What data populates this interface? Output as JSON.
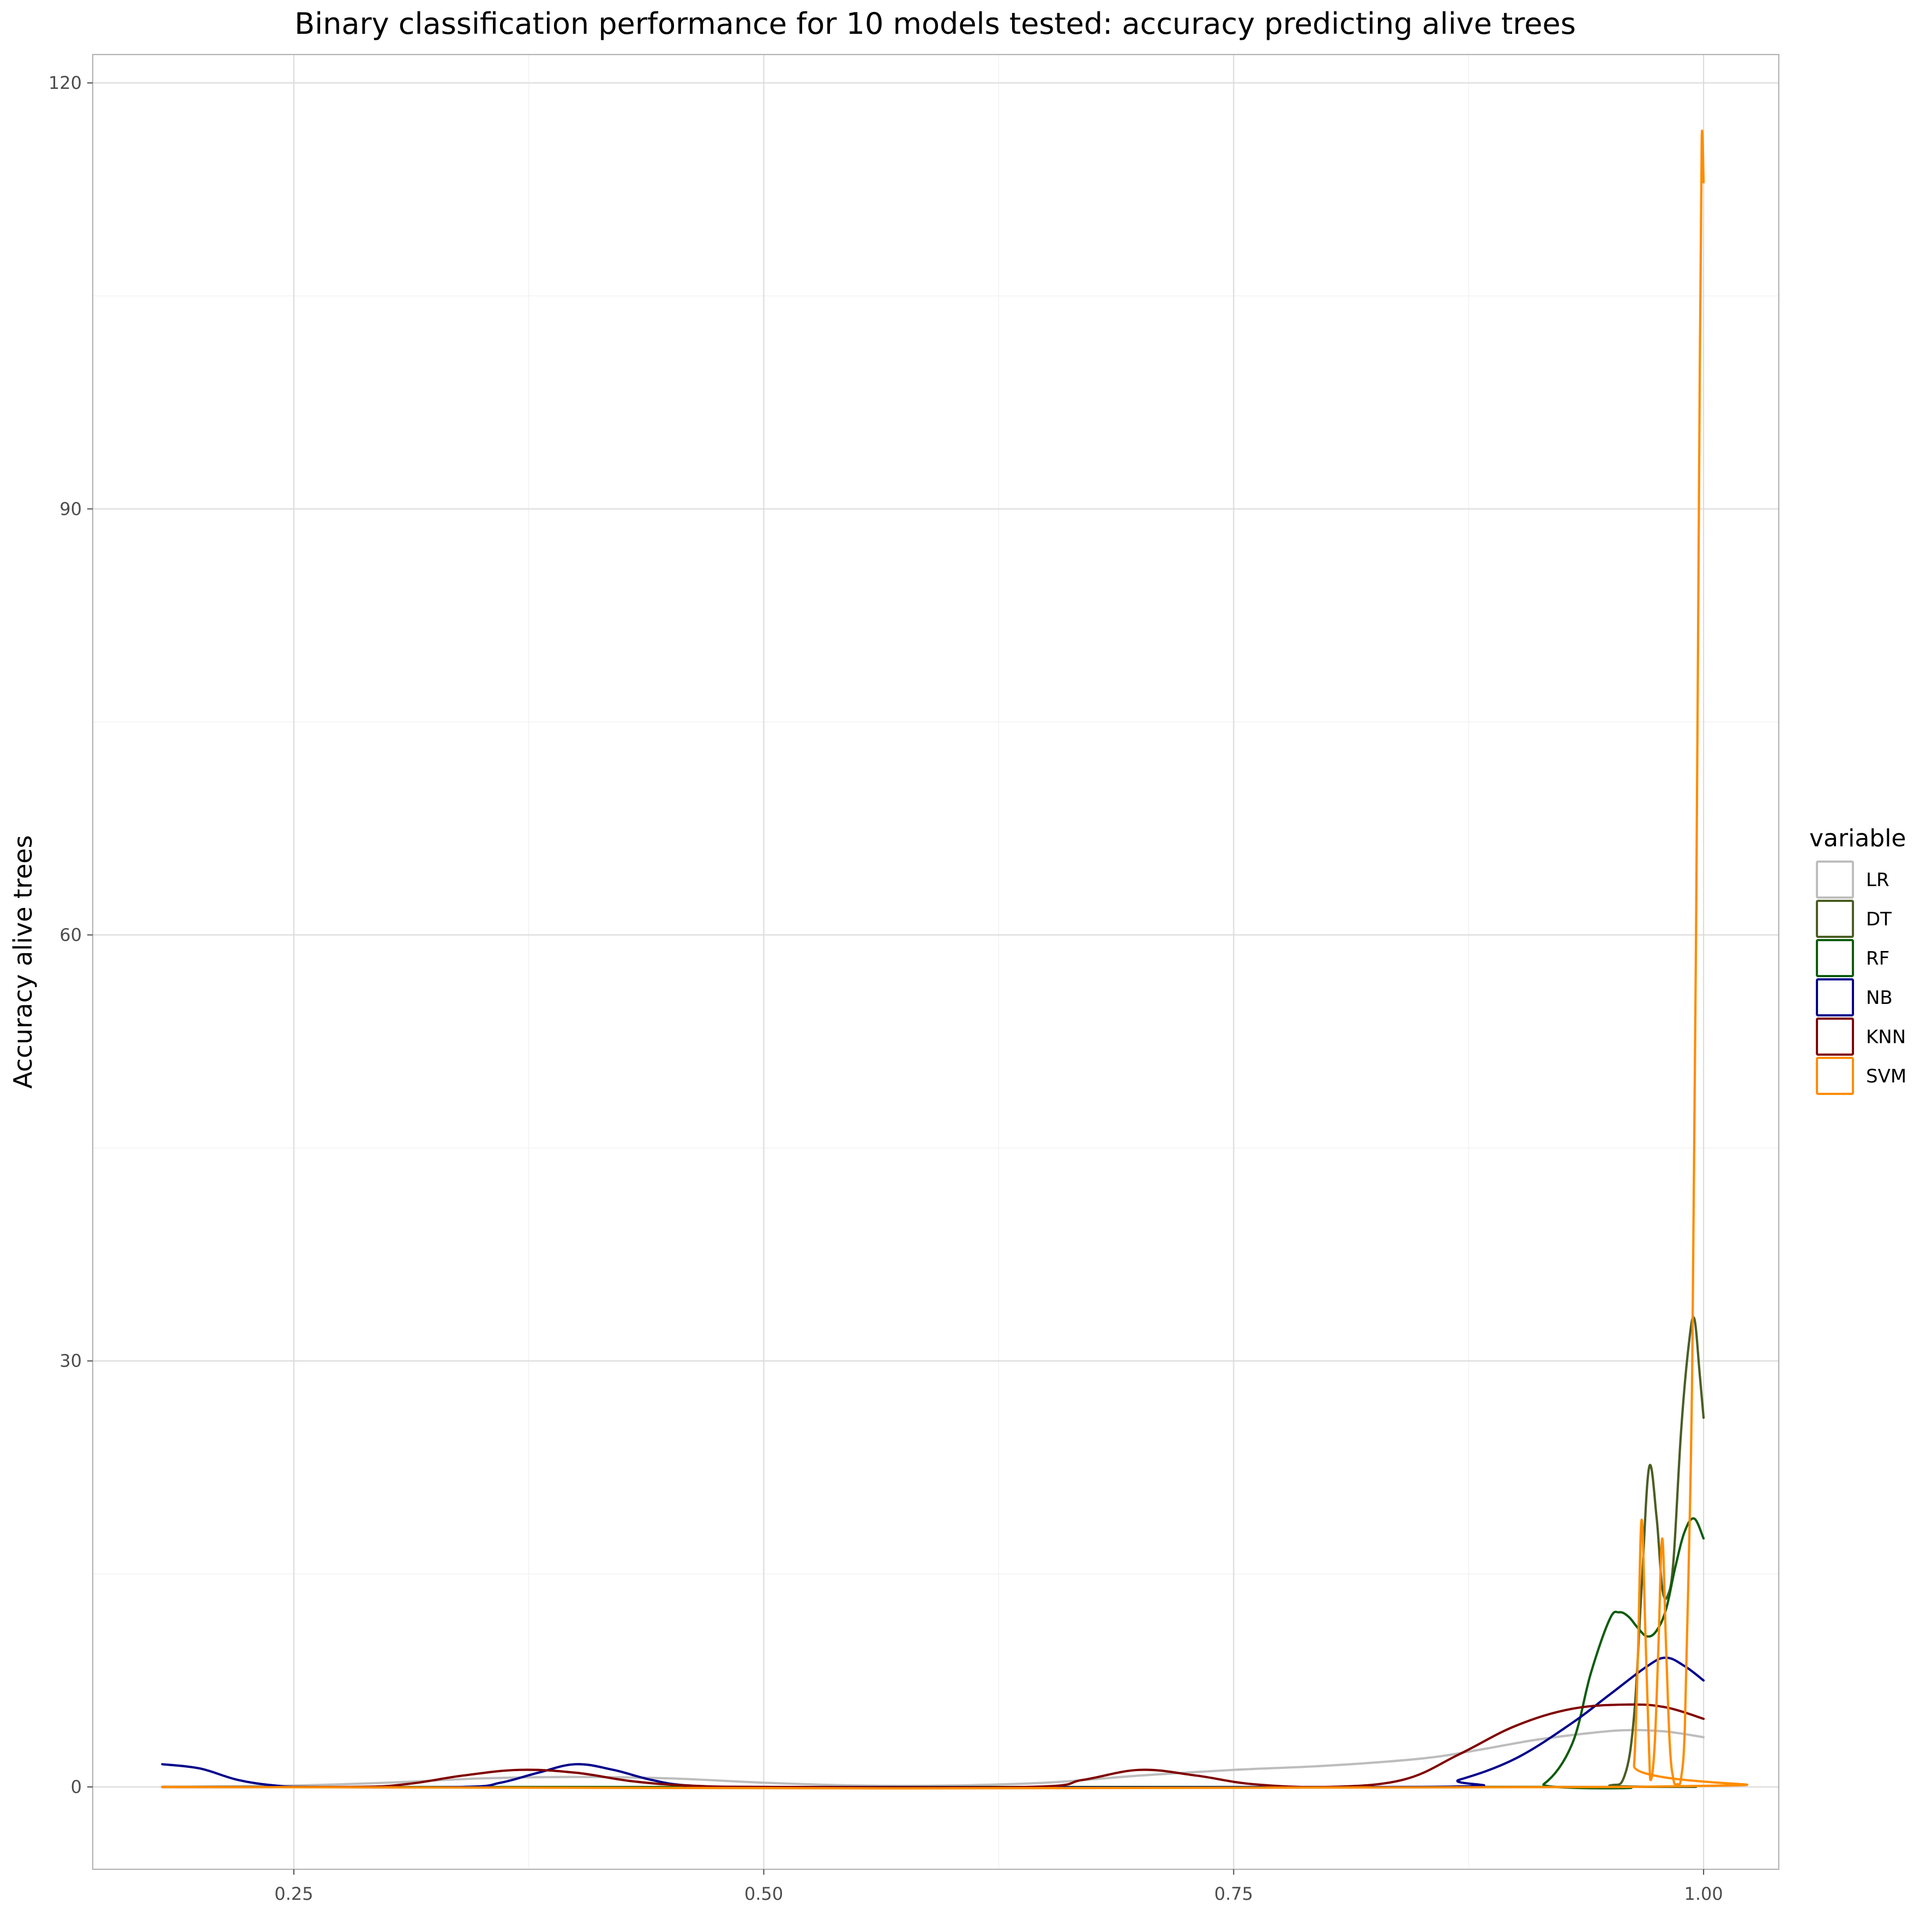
{
  "chart_data": {
    "type": "line",
    "title": "Binary classification performance for 10 models tested: accuracy predicting alive trees",
    "xlabel": "",
    "ylabel": "Accuracy alive trees",
    "xlim": [
      0.143,
      1.04
    ],
    "ylim": [
      -5.8,
      122
    ],
    "x_ticks": [
      0.25,
      0.5,
      0.75,
      1.0
    ],
    "x_tick_labels": [
      "0.25",
      "0.50",
      "0.75",
      "1.00"
    ],
    "y_ticks": [
      0,
      30,
      60,
      90,
      120
    ],
    "y_tick_labels": [
      "0",
      "30",
      "60",
      "90",
      "120"
    ],
    "grid": true,
    "legend": {
      "title": "variable",
      "position": "right",
      "entries": [
        "LR",
        "DT",
        "RF",
        "NB",
        "KNN",
        "SVM"
      ]
    },
    "series": [
      {
        "name": "LR",
        "color": "#bdbdbd",
        "points": [
          [
            0.18,
            0
          ],
          [
            0.25,
            0.1
          ],
          [
            0.3,
            0.3
          ],
          [
            0.35,
            0.6
          ],
          [
            0.4,
            0.7
          ],
          [
            0.45,
            0.6
          ],
          [
            0.5,
            0.3
          ],
          [
            0.55,
            0.1
          ],
          [
            0.6,
            0.1
          ],
          [
            0.65,
            0.3
          ],
          [
            0.7,
            0.8
          ],
          [
            0.75,
            1.2
          ],
          [
            0.8,
            1.5
          ],
          [
            0.85,
            2
          ],
          [
            0.88,
            2.6
          ],
          [
            0.91,
            3.3
          ],
          [
            0.94,
            3.8
          ],
          [
            0.96,
            4
          ],
          [
            0.98,
            3.9
          ],
          [
            1.0,
            3.5
          ]
        ]
      },
      {
        "name": "DT",
        "color": "#4a5e23",
        "points": [
          [
            0.18,
            0
          ],
          [
            0.93,
            0
          ],
          [
            0.95,
            0.1
          ],
          [
            0.958,
            0.8
          ],
          [
            0.963,
            5
          ],
          [
            0.967,
            14
          ],
          [
            0.971,
            22.5
          ],
          [
            0.975,
            19
          ],
          [
            0.978,
            14
          ],
          [
            0.981,
            13.5
          ],
          [
            0.984,
            16
          ],
          [
            0.988,
            25
          ],
          [
            0.992,
            31
          ],
          [
            0.995,
            33
          ],
          [
            0.998,
            29
          ],
          [
            1.0,
            26
          ]
        ]
      },
      {
        "name": "RF",
        "color": "#0d5c0d",
        "points": [
          [
            0.18,
            0
          ],
          [
            0.9,
            0
          ],
          [
            0.915,
            0.2
          ],
          [
            0.93,
            3
          ],
          [
            0.94,
            8
          ],
          [
            0.95,
            11.8
          ],
          [
            0.955,
            12.3
          ],
          [
            0.96,
            12
          ],
          [
            0.965,
            11.2
          ],
          [
            0.97,
            10.6
          ],
          [
            0.975,
            11
          ],
          [
            0.98,
            12.5
          ],
          [
            0.985,
            15.5
          ],
          [
            0.99,
            18
          ],
          [
            0.995,
            18.9
          ],
          [
            1.0,
            17.5
          ]
        ]
      },
      {
        "name": "NB",
        "color": "#00008b",
        "points": [
          [
            0.18,
            1.6
          ],
          [
            0.2,
            1.3
          ],
          [
            0.22,
            0.5
          ],
          [
            0.24,
            0.1
          ],
          [
            0.26,
            0
          ],
          [
            0.34,
            0
          ],
          [
            0.36,
            0.3
          ],
          [
            0.38,
            1
          ],
          [
            0.4,
            1.6
          ],
          [
            0.42,
            1.2
          ],
          [
            0.44,
            0.5
          ],
          [
            0.46,
            0.1
          ],
          [
            0.5,
            0
          ],
          [
            0.85,
            0
          ],
          [
            0.87,
            0.5
          ],
          [
            0.9,
            2
          ],
          [
            0.93,
            4.5
          ],
          [
            0.95,
            6.5
          ],
          [
            0.97,
            8.5
          ],
          [
            0.98,
            9.1
          ],
          [
            0.99,
            8.5
          ],
          [
            1.0,
            7.5
          ]
        ]
      },
      {
        "name": "KNN",
        "color": "#800000",
        "points": [
          [
            0.18,
            0
          ],
          [
            0.28,
            0
          ],
          [
            0.31,
            0.2
          ],
          [
            0.34,
            0.8
          ],
          [
            0.37,
            1.2
          ],
          [
            0.4,
            1
          ],
          [
            0.43,
            0.4
          ],
          [
            0.46,
            0.1
          ],
          [
            0.5,
            0
          ],
          [
            0.64,
            0
          ],
          [
            0.67,
            0.5
          ],
          [
            0.7,
            1.2
          ],
          [
            0.73,
            0.8
          ],
          [
            0.76,
            0.2
          ],
          [
            0.8,
            0
          ],
          [
            0.84,
            0.5
          ],
          [
            0.87,
            2.3
          ],
          [
            0.9,
            4.3
          ],
          [
            0.93,
            5.5
          ],
          [
            0.96,
            5.8
          ],
          [
            0.98,
            5.6
          ],
          [
            1.0,
            4.8
          ]
        ]
      },
      {
        "name": "SVM",
        "color": "#ff8c00",
        "points": [
          [
            0.18,
            0
          ],
          [
            0.96,
            0
          ],
          [
            0.963,
            1.5
          ],
          [
            0.965,
            9
          ],
          [
            0.967,
            18.8
          ],
          [
            0.969,
            11
          ],
          [
            0.971,
            2.5
          ],
          [
            0.972,
            0.5
          ],
          [
            0.974,
            3
          ],
          [
            0.976,
            10
          ],
          [
            0.978,
            17.5
          ],
          [
            0.98,
            10
          ],
          [
            0.982,
            3
          ],
          [
            0.984,
            0.5
          ],
          [
            0.986,
            0.2
          ],
          [
            0.988,
            0.6
          ],
          [
            0.99,
            4
          ],
          [
            0.992,
            15
          ],
          [
            0.994,
            30
          ],
          [
            0.996,
            60
          ],
          [
            0.998,
            100
          ],
          [
            0.999,
            116
          ],
          [
            1.0,
            113
          ]
        ]
      }
    ]
  }
}
